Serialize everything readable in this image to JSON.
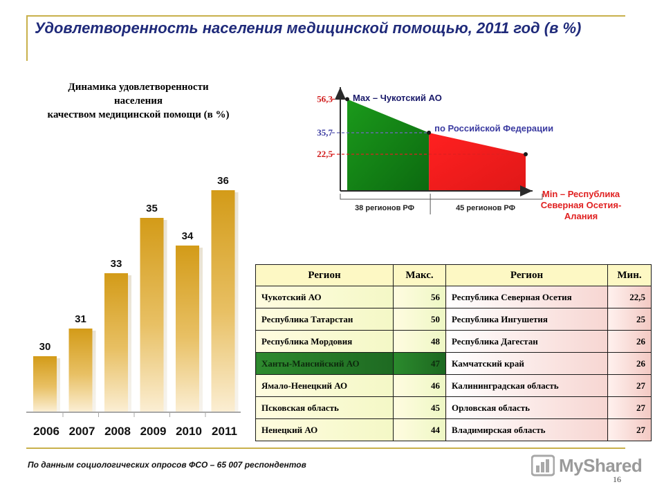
{
  "header": {
    "title": "Удовлетворенность населения медицинской помощью, 2011 год (в %)"
  },
  "chart_data": [
    {
      "type": "bar",
      "title_lines": [
        "Динамика удовлетворенности",
        "населения",
        "качеством медицинской помощи (в %)"
      ],
      "categories": [
        "2006",
        "2007",
        "2008",
        "2009",
        "2010",
        "2011"
      ],
      "values": [
        30,
        31,
        33,
        35,
        34,
        36
      ],
      "ylim": [
        28,
        36.5
      ],
      "bar_color": "#d6a21e"
    },
    {
      "type": "area",
      "points": [
        {
          "label": "56,3",
          "value": 56.3
        },
        {
          "label": "35,7",
          "value": 35.7
        },
        {
          "label": "22,5",
          "value": 22.5
        }
      ],
      "max_label": "Max – Чукотский АО",
      "mid_label": "по Российской Федерации",
      "min_label_lines": [
        "Min – Республика",
        "Северная Осетия-",
        "Алания"
      ],
      "groups": [
        {
          "label": "38 регионов РФ",
          "count": 38,
          "color": "#1e8a1e"
        },
        {
          "label": "45 регионов РФ",
          "count": 45,
          "color": "#ee1c1c"
        }
      ],
      "ylim": [
        0,
        62
      ]
    }
  ],
  "table": {
    "headers": [
      "Регион",
      "Макс.",
      "Регион",
      "Мин."
    ],
    "rows": [
      {
        "max_region": "Чукотский АО",
        "max_value": "56",
        "min_region": "Республика Северная Осетия",
        "min_value": "22,5"
      },
      {
        "max_region": "Республика Татарстан",
        "max_value": "50",
        "min_region": "Республика Ингушетия",
        "min_value": "25"
      },
      {
        "max_region": "Республика Мордовия",
        "max_value": "48",
        "min_region": "Республика Дагестан",
        "min_value": "26"
      },
      {
        "max_region": "Ханты-Мансийский АО",
        "max_value": "47",
        "min_region": "Камчатский край",
        "min_value": "26"
      },
      {
        "max_region": "Ямало-Ненецкий АО",
        "max_value": "46",
        "min_region": "Калининградская область",
        "min_value": "27"
      },
      {
        "max_region": "Псковская область",
        "max_value": "45",
        "min_region": "Орловская область",
        "min_value": "27"
      },
      {
        "max_region": "Ненецкий АО",
        "max_value": "44",
        "min_region": "Владимирская область",
        "min_value": "27"
      }
    ]
  },
  "footer": {
    "source": "По данным социологических опросов ФСО – 65 007 респондентов",
    "page_number": "16",
    "watermark": "MyShared"
  }
}
